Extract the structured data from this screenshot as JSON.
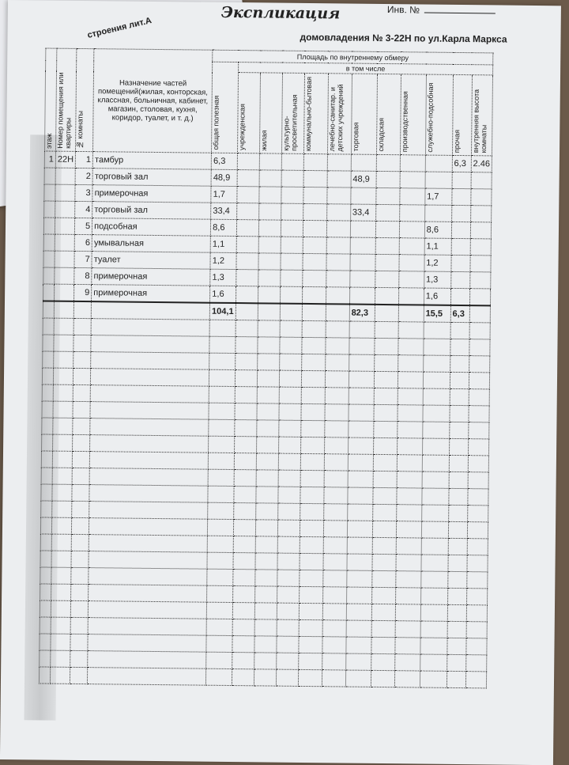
{
  "document": {
    "title": "Экспликация",
    "inv_label": "Инв. №",
    "building": "строения лит.А",
    "address": "домовладения № 3-22Н по ул.Карла Маркса"
  },
  "table": {
    "headers": {
      "floor": "этаж",
      "unit": "Номер помещения или квартиры",
      "room": "№ комнаты",
      "purpose": "Назначение частей помещений(жилая, конторская, классная, больничная, кабинет, магазин, столовая, кухня, коридор, туалет, и т. д.)",
      "area_group": "Площадь по внутреннему обмеру",
      "including": "в том числе",
      "total": "общая полезная",
      "cols": [
        "учрежденская",
        "жилая",
        "культурно-просветительная",
        "коммунально-бытовая",
        "лечебно-санитар. и детских учреждений",
        "торговая",
        "складская",
        "производственная",
        "служебно-подсобная",
        "прочая",
        "внутренняя высота комнаты"
      ]
    },
    "rows": [
      {
        "floor": "1",
        "unit": "22Н",
        "room": "1",
        "purpose": "тамбур",
        "total": "6,3",
        "cells": [
          "",
          "",
          "",
          "",
          "",
          "",
          "",
          "",
          "",
          "6,3",
          "2.46"
        ]
      },
      {
        "floor": "",
        "unit": "",
        "room": "2",
        "purpose": "торговый зал",
        "total": "48,9",
        "cells": [
          "",
          "",
          "",
          "",
          "",
          "48,9",
          "",
          "",
          "",
          "",
          ""
        ]
      },
      {
        "floor": "",
        "unit": "",
        "room": "3",
        "purpose": "примерочная",
        "total": "1,7",
        "cells": [
          "",
          "",
          "",
          "",
          "",
          "",
          "",
          "",
          "1,7",
          "",
          ""
        ]
      },
      {
        "floor": "",
        "unit": "",
        "room": "4",
        "purpose": "торговый зал",
        "total": "33,4",
        "cells": [
          "",
          "",
          "",
          "",
          "",
          "33,4",
          "",
          "",
          "",
          "",
          ""
        ]
      },
      {
        "floor": "",
        "unit": "",
        "room": "5",
        "purpose": "подсобная",
        "total": "8,6",
        "cells": [
          "",
          "",
          "",
          "",
          "",
          "",
          "",
          "",
          "8,6",
          "",
          ""
        ]
      },
      {
        "floor": "",
        "unit": "",
        "room": "6",
        "purpose": "умывальная",
        "total": "1,1",
        "cells": [
          "",
          "",
          "",
          "",
          "",
          "",
          "",
          "",
          "1,1",
          "",
          ""
        ]
      },
      {
        "floor": "",
        "unit": "",
        "room": "7",
        "purpose": "туалет",
        "total": "1,2",
        "cells": [
          "",
          "",
          "",
          "",
          "",
          "",
          "",
          "",
          "1,2",
          "",
          ""
        ]
      },
      {
        "floor": "",
        "unit": "",
        "room": "8",
        "purpose": "примерочная",
        "total": "1,3",
        "cells": [
          "",
          "",
          "",
          "",
          "",
          "",
          "",
          "",
          "1,3",
          "",
          ""
        ]
      },
      {
        "floor": "",
        "unit": "",
        "room": "9",
        "purpose": "примерочная",
        "total": "1,6",
        "cells": [
          "",
          "",
          "",
          "",
          "",
          "",
          "",
          "",
          "1,6",
          "",
          ""
        ]
      }
    ],
    "totals": {
      "total": "104,1",
      "cells": [
        "",
        "",
        "",
        "",
        "",
        "82,3",
        "",
        "",
        "15,5",
        "6,3",
        ""
      ]
    }
  }
}
